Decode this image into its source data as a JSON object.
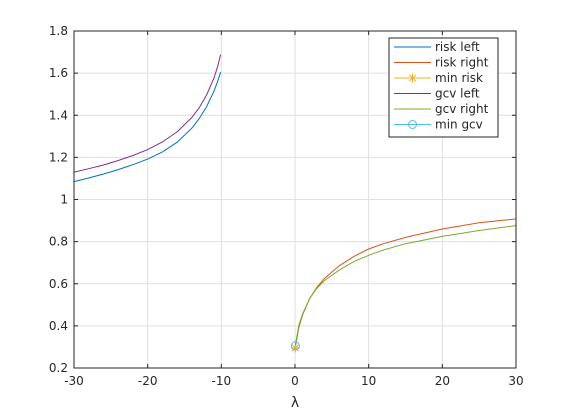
{
  "chart_data": {
    "type": "line",
    "xlabel": "λ",
    "ylabel": "",
    "xlim": [
      -30,
      30
    ],
    "ylim": [
      0.2,
      1.8
    ],
    "xticks": [
      -30,
      -20,
      -10,
      0,
      10,
      20,
      30
    ],
    "yticks": [
      0.2,
      0.4,
      0.6,
      0.8,
      1,
      1.2,
      1.4,
      1.6,
      1.8
    ],
    "grid": true,
    "legend_position": "top-right",
    "series": [
      {
        "name": "risk left",
        "color": "#0072BD",
        "marker": "none",
        "x": [
          -30,
          -28,
          -26,
          -24,
          -22,
          -20,
          -18,
          -16,
          -14,
          -13,
          -12,
          -11,
          -10.5,
          -10.1
        ],
        "y": [
          1.085,
          1.102,
          1.121,
          1.142,
          1.165,
          1.192,
          1.226,
          1.272,
          1.339,
          1.384,
          1.441,
          1.514,
          1.562,
          1.605
        ]
      },
      {
        "name": "risk right",
        "color": "#D95319",
        "marker": "none",
        "x": [
          0.05,
          0.5,
          1,
          2,
          3,
          4,
          6,
          8,
          10,
          12,
          15,
          20,
          25,
          30
        ],
        "y": [
          0.3,
          0.39,
          0.45,
          0.53,
          0.585,
          0.625,
          0.685,
          0.73,
          0.765,
          0.79,
          0.82,
          0.86,
          0.89,
          0.908
        ]
      },
      {
        "name": "min risk",
        "color": "#EDB120",
        "marker": "asterisk",
        "x": [
          0.05
        ],
        "y": [
          0.295
        ]
      },
      {
        "name": "gcv left",
        "color": "#7E2F8E",
        "marker": "none",
        "x": [
          -30,
          -28,
          -26,
          -24,
          -22,
          -20,
          -18,
          -16,
          -14,
          -13,
          -12,
          -11,
          -10.5,
          -10.1
        ],
        "y": [
          1.13,
          1.146,
          1.164,
          1.185,
          1.209,
          1.237,
          1.273,
          1.321,
          1.39,
          1.436,
          1.496,
          1.577,
          1.633,
          1.688
        ]
      },
      {
        "name": "gcv right",
        "color": "#77AC30",
        "marker": "none",
        "x": [
          0.05,
          0.5,
          1,
          2,
          3,
          4,
          6,
          8,
          10,
          12,
          15,
          20,
          25,
          30
        ],
        "y": [
          0.31,
          0.4,
          0.455,
          0.53,
          0.58,
          0.615,
          0.665,
          0.705,
          0.735,
          0.76,
          0.79,
          0.825,
          0.853,
          0.876
        ]
      },
      {
        "name": "min gcv",
        "color": "#4DBEEE",
        "marker": "circle",
        "x": [
          0.05
        ],
        "y": [
          0.305
        ]
      }
    ]
  }
}
